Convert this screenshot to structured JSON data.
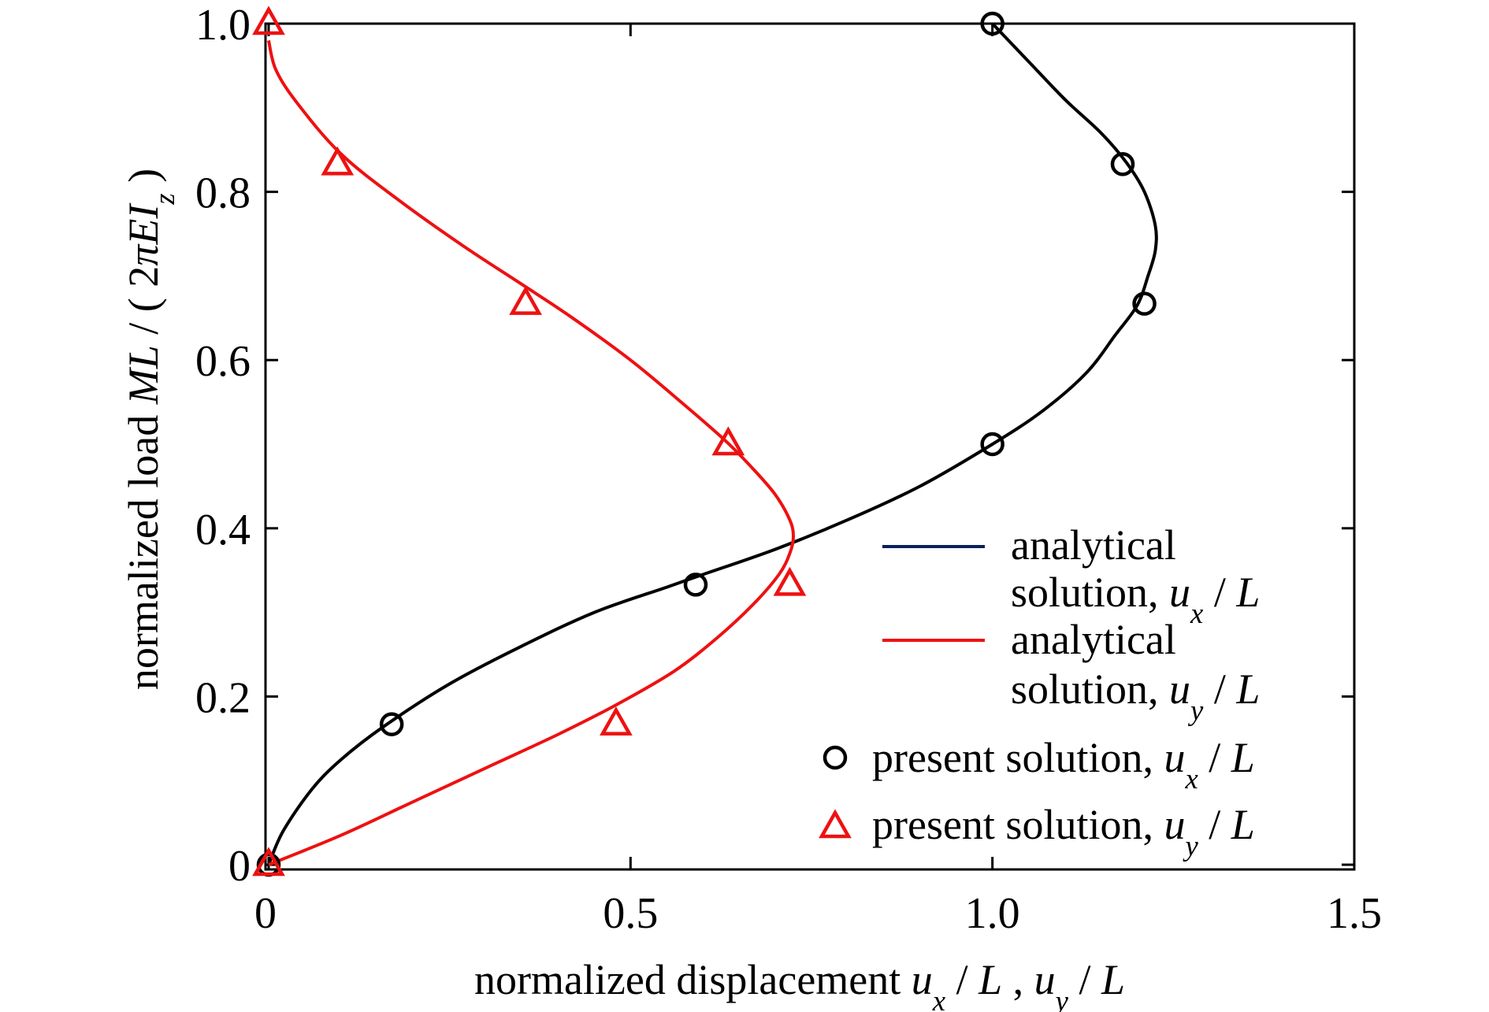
{
  "chart_data": {
    "type": "line",
    "xlabel_parts": [
      "normalized displacement ",
      "u",
      "x",
      " / ",
      "L",
      " , ",
      "u",
      "y",
      " / ",
      "L"
    ],
    "ylabel_parts": [
      "normalized load ",
      "ML",
      " / ( 2",
      "πEI",
      "z",
      " )"
    ],
    "xlim": [
      0,
      1.5
    ],
    "ylim": [
      0,
      1.0
    ],
    "xticks": [
      0,
      0.5,
      1.0,
      1.5
    ],
    "xtick_labels": [
      "0",
      "0.5",
      "1.0",
      "1.5"
    ],
    "yticks": [
      0,
      0.2,
      0.4,
      0.6,
      0.8,
      1.0
    ],
    "ytick_labels": [
      "0",
      "0.2",
      "0.4",
      "0.6",
      "0.8",
      "1.0"
    ],
    "grid": false,
    "legend_placement": "bottom-right",
    "series": [
      {
        "name": "analytical solution, u_x / L",
        "style": "line",
        "color": "#000000",
        "legend_color": "#0a1f5c",
        "legend_parts": [
          "analytical",
          "solution, ",
          "u",
          "x",
          " / ",
          "L"
        ],
        "x": [
          0,
          0.02,
          0.06,
          0.1,
          0.16,
          0.25,
          0.35,
          0.45,
          0.55,
          0.6,
          0.7,
          0.8,
          0.9,
          1.0,
          1.07,
          1.13,
          1.17,
          1.2,
          1.215,
          1.225,
          1.225,
          1.21,
          1.185,
          1.15,
          1.1,
          1.05,
          1.0
        ],
        "y": [
          0,
          0.04,
          0.09,
          0.125,
          0.165,
          0.215,
          0.26,
          0.3,
          0.33,
          0.345,
          0.375,
          0.41,
          0.45,
          0.5,
          0.54,
          0.585,
          0.63,
          0.665,
          0.7,
          0.73,
          0.76,
          0.8,
          0.835,
          0.87,
          0.91,
          0.955,
          1.0
        ]
      },
      {
        "name": "analytical solution, u_y / L",
        "style": "line",
        "color": "#ee1111",
        "legend_color": "#ee1111",
        "legend_parts": [
          "analytical",
          "solution, ",
          "u",
          "y",
          " / ",
          "L"
        ],
        "x": [
          0,
          0.1,
          0.2,
          0.3,
          0.4,
          0.48,
          0.56,
          0.62,
          0.67,
          0.705,
          0.72,
          0.725,
          0.72,
          0.7,
          0.67,
          0.63,
          0.57,
          0.5,
          0.42,
          0.35,
          0.27,
          0.18,
          0.1,
          0.04,
          0.01,
          0
        ],
        "y": [
          0,
          0.035,
          0.075,
          0.115,
          0.155,
          0.19,
          0.23,
          0.27,
          0.31,
          0.345,
          0.37,
          0.39,
          0.41,
          0.44,
          0.47,
          0.505,
          0.55,
          0.6,
          0.65,
          0.69,
          0.735,
          0.79,
          0.845,
          0.905,
          0.945,
          0.98
        ]
      },
      {
        "name": "present solution, u_x / L",
        "style": "marker-circle",
        "color": "#000000",
        "legend_parts": [
          "present solution, ",
          "u",
          "x",
          " / ",
          "L"
        ],
        "x": [
          0,
          0.17,
          0.59,
          1.0,
          1.21,
          1.18,
          1.0
        ],
        "y": [
          0,
          0.167,
          0.333,
          0.5,
          0.667,
          0.833,
          1.0
        ]
      },
      {
        "name": "present solution, u_y / L",
        "style": "marker-triangle",
        "color": "#ee1111",
        "legend_parts": [
          "present solution, ",
          "u",
          "y",
          " / ",
          "L"
        ],
        "x": [
          0,
          0.48,
          0.72,
          0.635,
          0.355,
          0.095,
          0
        ],
        "y": [
          0,
          0.167,
          0.333,
          0.5,
          0.667,
          0.833,
          1.0
        ]
      }
    ]
  }
}
